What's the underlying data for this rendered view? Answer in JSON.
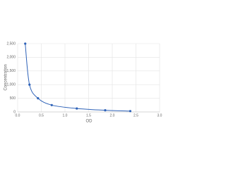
{
  "chart_data": {
    "type": "scatter",
    "line": "smooth",
    "color": "#2e62b8",
    "x_label": "OD",
    "y_label": "Concentration",
    "x": [
      0.16,
      0.25,
      0.43,
      0.72,
      1.25,
      1.85,
      2.38
    ],
    "values": [
      2500,
      1000,
      500,
      250,
      125,
      62,
      31
    ],
    "xlim": [
      0,
      3
    ],
    "ylim": [
      0,
      2500
    ],
    "xticks": [
      {
        "value": 0,
        "label": "0.0"
      },
      {
        "value": 0.5,
        "label": "0.5"
      },
      {
        "value": 1,
        "label": "1.0"
      },
      {
        "value": 1.5,
        "label": "1.5"
      },
      {
        "value": 2,
        "label": "2.0"
      },
      {
        "value": 2.5,
        "label": "2.5"
      },
      {
        "value": 3,
        "label": "3.0"
      }
    ],
    "yticks": [
      0,
      500,
      {
        "value": 1000,
        "label": "1,000"
      },
      {
        "value": 1500,
        "label": "1,500"
      },
      {
        "value": 2000,
        "label": "2,000"
      },
      {
        "value": 2500,
        "label": "2,500"
      }
    ],
    "grid": true
  }
}
